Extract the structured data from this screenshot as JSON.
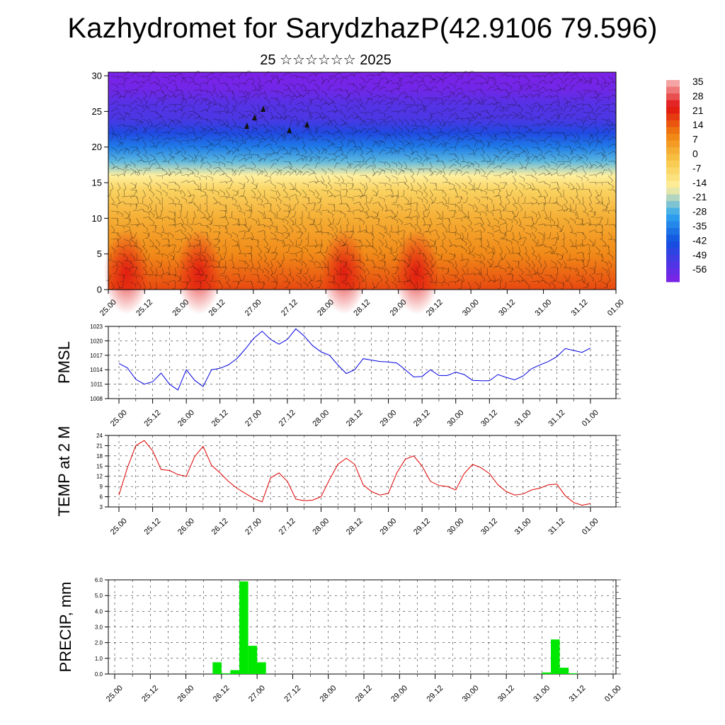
{
  "header": {
    "title": "Kazhydromet for SarydzhazP(42.9106 79.596)",
    "subtitle": "25 ☆☆☆☆☆☆ 2025"
  },
  "time_labels": [
    "25.00",
    "25.12",
    "26.00",
    "26.12",
    "27.00",
    "27.12",
    "28.00",
    "28.12",
    "29.00",
    "29.12",
    "30.00",
    "30.12",
    "31.00",
    "31.12",
    "01.00"
  ],
  "chart_data": [
    {
      "type": "heatmap",
      "title": "",
      "xlabel": "",
      "ylabel": "",
      "x_tick_labels": [
        "25.00",
        "25.12",
        "26.00",
        "26.12",
        "27.00",
        "27.12",
        "28.00",
        "28.12",
        "29.00",
        "29.12",
        "30.00",
        "30.12",
        "31.00",
        "31.12",
        "01.00"
      ],
      "y_ticks": [
        0,
        5,
        10,
        15,
        20,
        25,
        30
      ],
      "ylim": [
        0,
        30.5
      ],
      "overlay": "wind barbs",
      "colorbar": {
        "labels": [
          "35",
          "28",
          "21",
          "14",
          "7",
          "0",
          "-7",
          "-14",
          "-21",
          "-28",
          "-35",
          "-42",
          "-49",
          "-56"
        ],
        "range": [
          -63,
          42
        ],
        "colors": {
          "hot": "#e01010",
          "warm": "#f08010",
          "mild": "#fff0a0",
          "cool": "#30a8f0",
          "cold": "#1050e0",
          "frigid": "#8020e8"
        }
      },
      "approx_temperature_by_level": [
        {
          "level": 0,
          "temp": 21
        },
        {
          "level": 5,
          "temp": 12
        },
        {
          "level": 10,
          "temp": 5
        },
        {
          "level": 14,
          "temp": -4
        },
        {
          "level": 16,
          "temp": -14
        },
        {
          "level": 18,
          "temp": -25
        },
        {
          "level": 20,
          "temp": -35
        },
        {
          "level": 22,
          "temp": -45
        },
        {
          "level": 24,
          "temp": -53
        },
        {
          "level": 26,
          "temp": -55
        },
        {
          "level": 28,
          "temp": -60
        },
        {
          "level": 30,
          "temp": -62
        }
      ],
      "warm_spots_near_surface": [
        "25.06",
        "26.06",
        "28.06",
        "29.06"
      ]
    },
    {
      "type": "line",
      "ylabel": "PMSL",
      "ylim": [
        1008,
        1023
      ],
      "y_ticks": [
        1008,
        1011,
        1014,
        1017,
        1020,
        1023
      ],
      "series": [
        {
          "color": "#0000e0",
          "values": [
            1015.3,
            1014.4,
            1012.0,
            1011.0,
            1011.5,
            1013.3,
            1011.0,
            1009.8,
            1014.0,
            1011.8,
            1010.5,
            1014.0,
            1014.3,
            1015.0,
            1016.3,
            1018.3,
            1020.5,
            1022.0,
            1020.3,
            1019.3,
            1020.3,
            1022.5,
            1021.0,
            1019.0,
            1017.7,
            1017.0,
            1015.0,
            1013.2,
            1014.0,
            1016.3,
            1016.0,
            1015.7,
            1015.6,
            1015.4,
            1014.0,
            1012.5,
            1012.6,
            1014.0,
            1012.8,
            1012.8,
            1013.5,
            1013.0,
            1011.8,
            1011.7,
            1011.7,
            1013.0,
            1012.4,
            1011.9,
            1012.7,
            1014.2,
            1015.0,
            1015.7,
            1016.7,
            1018.4,
            1018.0,
            1017.6,
            1018.5
          ]
        }
      ]
    },
    {
      "type": "line",
      "ylabel": "TEMP at 2 M",
      "ylim": [
        3,
        24
      ],
      "y_ticks": [
        3,
        6,
        9,
        12,
        15,
        18,
        21,
        24
      ],
      "series": [
        {
          "color": "#e00000",
          "values": [
            6.5,
            14.5,
            21.0,
            22.5,
            19.5,
            14.0,
            13.7,
            12.5,
            12.0,
            17.8,
            20.8,
            15.2,
            13.0,
            10.5,
            8.5,
            7.0,
            5.5,
            4.5,
            11.5,
            13.0,
            10.5,
            5.3,
            4.8,
            5.0,
            6.0,
            11.0,
            15.5,
            17.3,
            15.5,
            9.5,
            7.5,
            6.5,
            7.0,
            13.0,
            17.0,
            18.0,
            15.0,
            10.5,
            9.3,
            9.0,
            8.0,
            12.8,
            15.5,
            14.5,
            12.8,
            9.5,
            7.5,
            6.5,
            6.8,
            8.0,
            8.5,
            9.5,
            9.7,
            6.3,
            4.3,
            3.5,
            4.0
          ]
        }
      ]
    },
    {
      "type": "bar",
      "ylabel": "PRECIP, mm",
      "ylim": [
        0,
        6
      ],
      "y_ticks": [
        0.0,
        1.0,
        2.0,
        3.0,
        4.0,
        5.0,
        6.0
      ],
      "color": "#00e800",
      "bars": [
        {
          "x": "26.09",
          "value": 0.75
        },
        {
          "x": "26.12",
          "value": 0.05
        },
        {
          "x": "26.15",
          "value": 0.25
        },
        {
          "x": "26.18",
          "value": 5.9
        },
        {
          "x": "26.21",
          "value": 1.8
        },
        {
          "x": "27.00",
          "value": 0.75
        },
        {
          "x": "31.00",
          "value": 0.1
        },
        {
          "x": "31.03",
          "value": 2.2
        },
        {
          "x": "31.06",
          "value": 0.4
        },
        {
          "x": "31.09",
          "value": 0.05
        }
      ]
    }
  ]
}
